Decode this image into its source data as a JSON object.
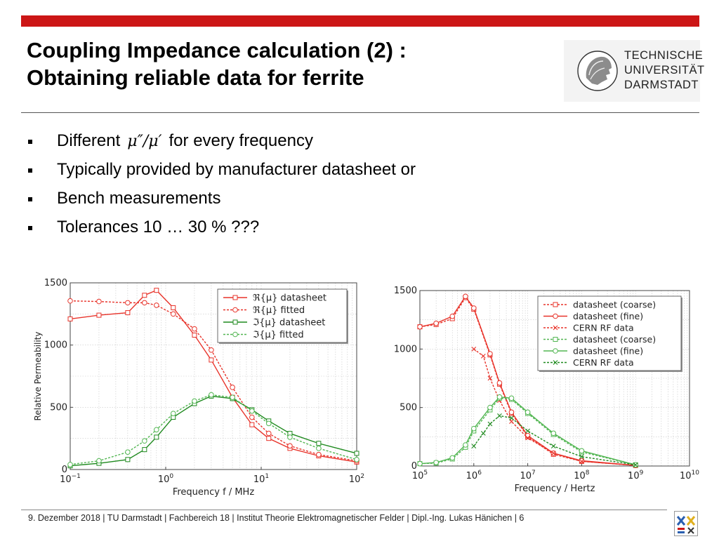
{
  "slide": {
    "title_line1": "Coupling Impedance calculation (2) :",
    "title_line2": "Obtaining reliable data for ferrite",
    "logo": {
      "line1": "TECHNISCHE",
      "line2": "UNIVERSITÄT",
      "line3": "DARMSTADT"
    },
    "bullets": [
      {
        "before": "Different",
        "math": "μ″/μ′",
        "after": "for every frequency"
      },
      {
        "text": "Typically provided by manufacturer datasheet or"
      },
      {
        "text": "Bench measurements"
      },
      {
        "text": "Tolerances 10 … 30 % ???"
      }
    ],
    "footer": "9. Dezember 2018  |  TU Darmstadt  |  Fachbereich 18  |  Institut Theorie Elektromagnetischer Felder  |  Dipl.-Ing. Lukas Hänichen  |  6",
    "colors": {
      "accent": "#cc1616",
      "red": "#e8332a",
      "green": "#1f8a1f",
      "light_green": "#52b652"
    }
  },
  "chart_data": [
    {
      "type": "line",
      "xscale": "log",
      "xlabel": "Frequency  f  / MHz",
      "ylabel": "Relative Permeability",
      "xlim": [
        0.1,
        100
      ],
      "ylim": [
        0,
        1500
      ],
      "xticks": [
        0.1,
        1,
        10,
        100
      ],
      "xtick_labels": [
        "10−1",
        "100",
        "101",
        "102"
      ],
      "yticks": [
        0,
        500,
        1000,
        1500
      ],
      "grid": true,
      "legend_position": "top-right",
      "series": [
        {
          "name": "ℜ{μ} datasheet",
          "color": "#e8332a",
          "marker": "square",
          "dashed": false,
          "x": [
            0.1,
            0.2,
            0.4,
            0.6,
            0.8,
            1.2,
            2,
            3,
            5,
            8,
            12,
            20,
            40,
            100
          ],
          "y": [
            1210,
            1240,
            1260,
            1400,
            1440,
            1300,
            1080,
            880,
            580,
            360,
            250,
            170,
            110,
            60
          ]
        },
        {
          "name": "ℜ{μ} fitted",
          "color": "#e8332a",
          "marker": "circle",
          "dashed": true,
          "x": [
            0.1,
            0.2,
            0.4,
            0.6,
            0.8,
            1.2,
            2,
            3,
            5,
            8,
            12,
            20,
            40,
            100
          ],
          "y": [
            1355,
            1350,
            1340,
            1340,
            1320,
            1250,
            1130,
            960,
            660,
            420,
            290,
            190,
            120,
            70
          ]
        },
        {
          "name": "ℑ{μ} datasheet",
          "color": "#1f8a1f",
          "marker": "square",
          "dashed": false,
          "x": [
            0.1,
            0.2,
            0.4,
            0.6,
            0.8,
            1.2,
            2,
            3,
            5,
            8,
            12,
            20,
            40,
            100
          ],
          "y": [
            30,
            50,
            80,
            160,
            260,
            420,
            530,
            590,
            570,
            480,
            390,
            290,
            210,
            130
          ]
        },
        {
          "name": "ℑ{μ} fitted",
          "color": "#52b652",
          "marker": "circle",
          "dashed": true,
          "x": [
            0.1,
            0.2,
            0.4,
            0.6,
            0.8,
            1.2,
            2,
            3,
            5,
            8,
            12,
            20,
            40,
            100
          ],
          "y": [
            40,
            70,
            140,
            230,
            320,
            450,
            550,
            600,
            580,
            470,
            370,
            260,
            170,
            80
          ]
        }
      ]
    },
    {
      "type": "line",
      "xscale": "log",
      "xlabel": "Frequency / Hertz",
      "ylabel": "",
      "xlim": [
        100000,
        10000000000
      ],
      "ylim": [
        0,
        1500
      ],
      "xticks": [
        100000,
        1000000,
        10000000,
        100000000,
        1000000000,
        10000000000
      ],
      "xtick_labels": [
        "105",
        "106",
        "107",
        "108",
        "109",
        "1010"
      ],
      "yticks": [
        0,
        500,
        1000,
        1500
      ],
      "grid": true,
      "legend_position": "top-right",
      "series": [
        {
          "name": "datasheet (coarse)",
          "color": "#e8332a",
          "marker": "square",
          "dashed": true,
          "x": [
            100000,
            200000,
            400000,
            700000,
            1000000,
            2000000,
            3000000,
            5000000,
            10000000,
            30000000,
            100000000,
            1000000000
          ],
          "y": [
            1190,
            1210,
            1260,
            1440,
            1340,
            950,
            700,
            450,
            250,
            100,
            40,
            5
          ]
        },
        {
          "name": "datasheet (fine)",
          "color": "#e8332a",
          "marker": "circle",
          "dashed": false,
          "x": [
            100000,
            200000,
            400000,
            700000,
            1000000,
            2000000,
            3000000,
            5000000,
            10000000,
            30000000,
            100000000,
            1000000000
          ],
          "y": [
            1190,
            1220,
            1280,
            1450,
            1350,
            960,
            710,
            460,
            260,
            110,
            45,
            5
          ]
        },
        {
          "name": "CERN RF data",
          "color": "#e8332a",
          "marker": "x",
          "dashed": true,
          "x": [
            1000000,
            1500000,
            2000000,
            3000000,
            5000000,
            10000000,
            30000000,
            100000000,
            1000000000
          ],
          "y": [
            1000,
            940,
            750,
            560,
            380,
            240,
            110,
            40,
            5
          ]
        },
        {
          "name": "datasheet (coarse)",
          "color": "#52b652",
          "marker": "square",
          "dashed": true,
          "x": [
            100000,
            200000,
            400000,
            700000,
            1000000,
            2000000,
            3000000,
            5000000,
            10000000,
            30000000,
            100000000,
            1000000000
          ],
          "y": [
            20,
            25,
            60,
            160,
            300,
            480,
            580,
            570,
            450,
            270,
            120,
            10
          ]
        },
        {
          "name": "datasheet (fine)",
          "color": "#52b652",
          "marker": "circle",
          "dashed": false,
          "x": [
            100000,
            200000,
            400000,
            700000,
            1000000,
            2000000,
            3000000,
            5000000,
            10000000,
            30000000,
            100000000,
            1000000000
          ],
          "y": [
            20,
            30,
            70,
            180,
            320,
            500,
            590,
            580,
            460,
            280,
            130,
            10
          ]
        },
        {
          "name": "CERN RF data",
          "color": "#1f8a1f",
          "marker": "x",
          "dashed": true,
          "x": [
            1000000,
            1500000,
            2000000,
            3000000,
            5000000,
            10000000,
            30000000,
            100000000,
            1000000000
          ],
          "y": [
            170,
            280,
            360,
            430,
            410,
            300,
            170,
            80,
            10
          ]
        }
      ]
    }
  ]
}
